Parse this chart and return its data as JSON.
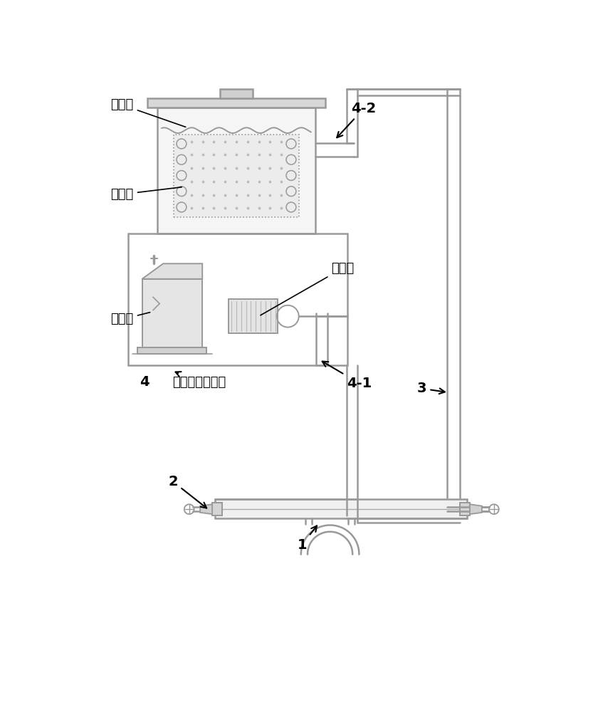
{
  "bg_color": "#ffffff",
  "lc": "#999999",
  "lc2": "#777777",
  "tc": "#000000",
  "labels": {
    "zailenji": "载冷剂",
    "zhengfaqi": "蒸发器",
    "xunhuanbeng": "循环泵",
    "yasouji": "压缩机",
    "label4": "4",
    "label4_text": "低温冷却循环仪",
    "label42": "4-2",
    "label41": "4-1",
    "label3": "3",
    "label2": "2",
    "label1": "1"
  }
}
